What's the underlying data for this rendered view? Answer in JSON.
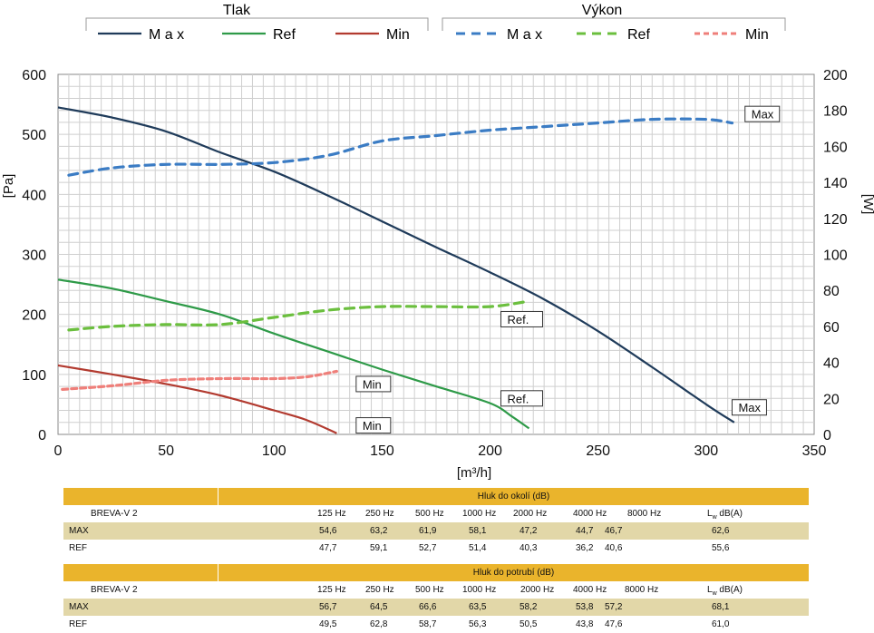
{
  "legend": {
    "pressure_title": "Tlak",
    "power_title": "Výkon",
    "items": [
      {
        "label": "M a x",
        "group": "pressure",
        "color": "#1f3b5a",
        "dash": "solid"
      },
      {
        "label": "Ref",
        "group": "pressure",
        "color": "#2e9a48",
        "dash": "solid"
      },
      {
        "label": "Min",
        "group": "pressure",
        "color": "#b23a2f",
        "dash": "solid"
      },
      {
        "label": "M a x",
        "group": "power",
        "color": "#3b7cc4",
        "dash": "dashed"
      },
      {
        "label": "Ref",
        "group": "power",
        "color": "#6bbf3e",
        "dash": "dashed"
      },
      {
        "label": "Min",
        "group": "power",
        "color": "#ef7f7a",
        "dash": "dotted"
      }
    ]
  },
  "chart_data": {
    "type": "line",
    "xlabel": "[m³/h]",
    "ylabel": "[Pa]",
    "y2label": "[W]",
    "xlim": [
      0,
      350
    ],
    "ylim": [
      0,
      600
    ],
    "y2lim": [
      0,
      200
    ],
    "xticks": [
      0,
      50,
      100,
      150,
      200,
      250,
      300,
      350
    ],
    "yticks": [
      0,
      100,
      200,
      300,
      400,
      500,
      600
    ],
    "y2ticks": [
      0,
      20,
      40,
      60,
      80,
      100,
      120,
      140,
      160,
      180,
      200
    ],
    "grid": true,
    "series": [
      {
        "axis": "left",
        "color": "#1f3b5a",
        "dash": "solid",
        "x": [
          0,
          25,
          50,
          75,
          100,
          125,
          150,
          175,
          200,
          225,
          250,
          275,
          300,
          313
        ],
        "y": [
          545,
          528,
          505,
          470,
          438,
          398,
          355,
          312,
          270,
          225,
          172,
          112,
          50,
          20
        ]
      },
      {
        "axis": "left",
        "color": "#2e9a48",
        "dash": "solid",
        "x": [
          0,
          25,
          50,
          75,
          100,
          125,
          150,
          175,
          200,
          210,
          218
        ],
        "y": [
          258,
          243,
          222,
          200,
          168,
          138,
          108,
          80,
          52,
          30,
          10
        ]
      },
      {
        "axis": "left",
        "color": "#b23a2f",
        "dash": "solid",
        "x": [
          0,
          25,
          50,
          75,
          100,
          115,
          129
        ],
        "y": [
          115,
          100,
          84,
          65,
          40,
          24,
          2
        ]
      },
      {
        "axis": "right",
        "color": "#3b7cc4",
        "dash": "dashed",
        "x": [
          5,
          25,
          50,
          75,
          100,
          125,
          150,
          175,
          200,
          225,
          250,
          275,
          300,
          312
        ],
        "y": [
          144,
          148,
          150,
          150,
          151,
          155,
          163,
          166,
          169,
          171,
          173,
          175,
          175,
          173
        ]
      },
      {
        "axis": "right",
        "color": "#6bbf3e",
        "dash": "dashed",
        "x": [
          5,
          25,
          50,
          75,
          100,
          125,
          150,
          175,
          200,
          218
        ],
        "y": [
          58,
          60,
          61,
          61,
          65,
          69,
          71,
          71,
          71,
          74
        ]
      },
      {
        "axis": "right",
        "color": "#ef7f7a",
        "dash": "dotted",
        "x": [
          2,
          25,
          50,
          75,
          100,
          115,
          129
        ],
        "y": [
          25,
          27,
          30,
          31,
          31,
          32,
          35
        ]
      }
    ],
    "annotations": [
      {
        "text": "Max",
        "x": 318,
        "y": 178,
        "axis": "right"
      },
      {
        "text": "Ref.",
        "x": 205,
        "y": 64,
        "axis": "right"
      },
      {
        "text": "Min",
        "x": 138,
        "y": 28,
        "axis": "right"
      },
      {
        "text": "Max",
        "x": 312,
        "y": 45,
        "axis": "left"
      },
      {
        "text": "Ref.",
        "x": 205,
        "y": 60,
        "axis": "left"
      },
      {
        "text": "Min",
        "x": 138,
        "y": 15,
        "axis": "left"
      }
    ]
  },
  "tables": [
    {
      "title": "Hluk do okolí (dB)",
      "model": "BREVA-V 2",
      "columns": [
        "125 Hz",
        "250 Hz",
        "500 Hz",
        "1000 Hz",
        "2000 Hz",
        "4000 Hz",
        "8000 Hz"
      ],
      "lw_main": "L",
      "lw_sub": "w",
      "lw_rest": " dB(A)",
      "rows": [
        {
          "name": "MAX",
          "values": [
            "54,6",
            "63,2",
            "61,9",
            "58,1",
            "47,2",
            "44,7",
            "46,7"
          ],
          "lw": "62,6"
        },
        {
          "name": "REF",
          "values": [
            "47,7",
            "59,1",
            "52,7",
            "51,4",
            "40,3",
            "36,2",
            "40,6"
          ],
          "lw": "55,6"
        }
      ]
    },
    {
      "title": "Hluk do potrubí (dB)",
      "model": "BREVA-V 2",
      "columns": [
        "125 Hz",
        "250 Hz",
        "500 Hz",
        "1000 Hz",
        "2000 Hz",
        "4000 Hz",
        "8000 Hz"
      ],
      "lw_main": "L",
      "lw_sub": "w",
      "lw_rest": " dB(A)",
      "rows": [
        {
          "name": "MAX",
          "values": [
            "56,7",
            "64,5",
            "66,6",
            "63,5",
            "58,2",
            "53,8",
            "57,2"
          ],
          "lw": "68,1"
        },
        {
          "name": "REF",
          "values": [
            "49,5",
            "62,8",
            "58,7",
            "56,3",
            "50,5",
            "43,8",
            "47,6"
          ],
          "lw": "61,0"
        }
      ]
    }
  ]
}
